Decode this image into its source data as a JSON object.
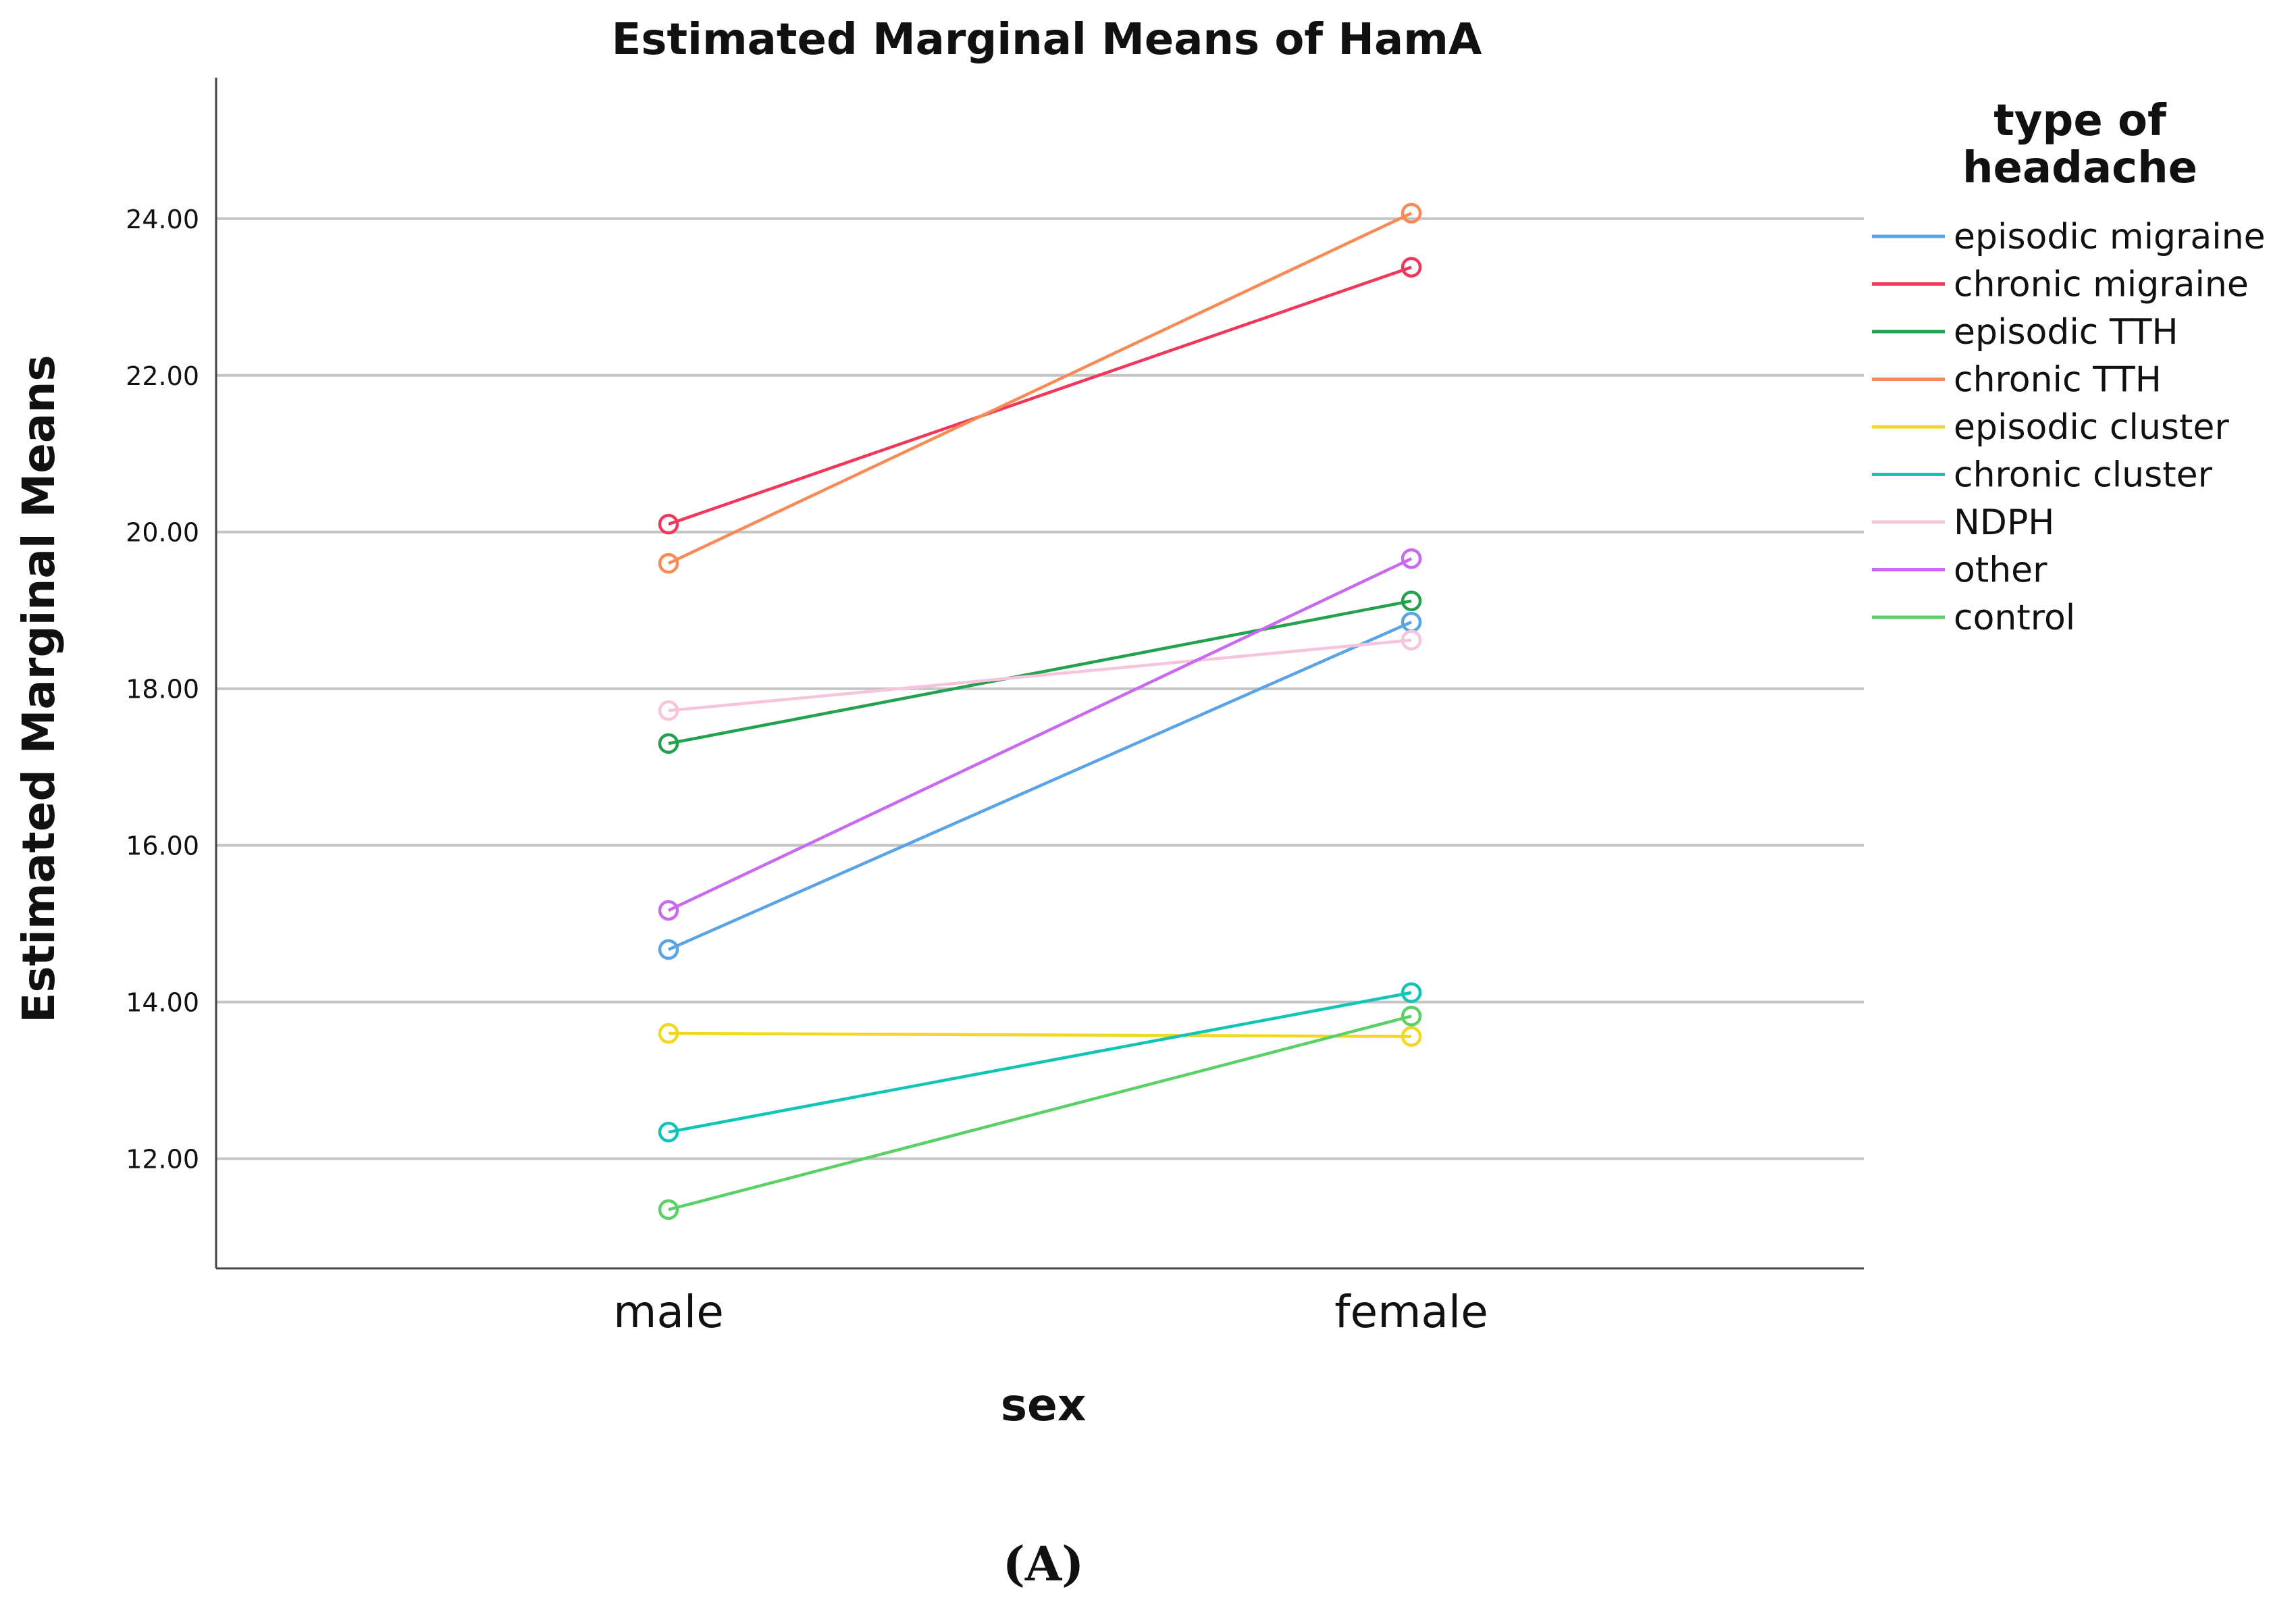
{
  "chart_data": {
    "type": "line",
    "title": "Estimated Marginal Means of HamA",
    "xlabel": "sex",
    "ylabel": "Estimated Marginal Means",
    "categories": [
      "male",
      "female"
    ],
    "ylim": [
      10.6,
      25.8
    ],
    "yticks": [
      12,
      14,
      16,
      18,
      20,
      22,
      24
    ],
    "ytick_labels": [
      "12.00",
      "14.00",
      "16.00",
      "18.00",
      "20.00",
      "22.00",
      "24.00"
    ],
    "grid": "horizontal",
    "marker": "open-circle",
    "legend": {
      "title_lines": [
        "type of",
        "headache"
      ],
      "placement": "right"
    },
    "series": [
      {
        "name": "episodic migraine",
        "color": "#5aa3e6",
        "values": [
          14.67,
          18.85
        ]
      },
      {
        "name": "chronic migraine",
        "color": "#f2385a",
        "values": [
          20.1,
          23.38
        ]
      },
      {
        "name": "episodic TTH",
        "color": "#24a14d",
        "values": [
          17.3,
          19.12
        ]
      },
      {
        "name": "chronic TTH",
        "color": "#fa8a55",
        "values": [
          19.6,
          24.07
        ]
      },
      {
        "name": "episodic cluster",
        "color": "#f0d820",
        "values": [
          13.6,
          13.56
        ]
      },
      {
        "name": "chronic cluster",
        "color": "#10c4b6",
        "values": [
          12.34,
          14.12
        ]
      },
      {
        "name": "NDPH",
        "color": "#f6c4dc",
        "values": [
          17.72,
          18.62
        ]
      },
      {
        "name": "other",
        "color": "#c86af0",
        "values": [
          15.17,
          19.66
        ]
      },
      {
        "name": "control",
        "color": "#5bd066",
        "values": [
          11.35,
          13.82
        ]
      }
    ]
  },
  "panel_label": "(A)"
}
